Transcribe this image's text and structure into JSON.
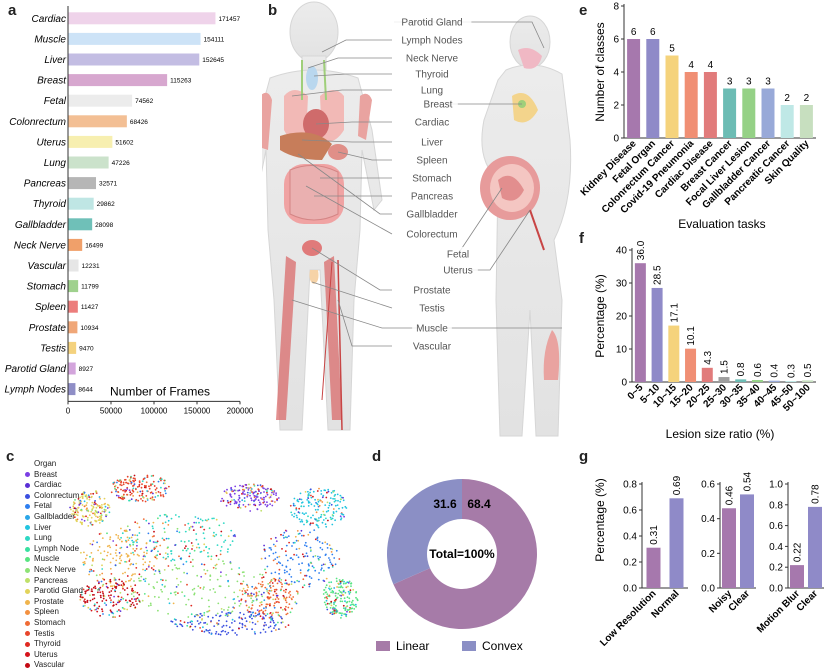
{
  "panels": {
    "a": "a",
    "b": "b",
    "c": "c",
    "d": "d",
    "e": "e",
    "f": "f",
    "g": "g"
  },
  "chart_data": [
    {
      "panel": "a",
      "type": "bar",
      "orientation": "horizontal",
      "xlabel": "Number of Frames",
      "xlim": [
        0,
        200000
      ],
      "xticks": [
        0,
        50000,
        100000,
        150000,
        200000
      ],
      "categories": [
        "Cardiac",
        "Muscle",
        "Liver",
        "Breast",
        "Fetal",
        "Colonrectum",
        "Uterus",
        "Lung",
        "Pancreas",
        "Thyroid",
        "Gallbladder",
        "Neck Nerve",
        "Vascular",
        "Stomach",
        "Spleen",
        "Prostate",
        "Testis",
        "Parotid Gland",
        "Lymph Nodes"
      ],
      "values": [
        171457,
        154111,
        152645,
        115263,
        74562,
        68426,
        51602,
        47226,
        32571,
        29862,
        28098,
        16499,
        12231,
        11799,
        11427,
        10934,
        9470,
        8927,
        8644
      ],
      "colors": [
        "#efd3ea",
        "#cde3f7",
        "#c3bde3",
        "#d7a7cf",
        "#ececec",
        "#f3bf94",
        "#f7efb0",
        "#cbe2cb",
        "#b6b6b6",
        "#bfe6e4",
        "#6fc0b8",
        "#f0a06a",
        "#e6e6e6",
        "#9fd18d",
        "#ec7d7c",
        "#f0a778",
        "#f4d27e",
        "#d3a5dc",
        "#8f8ec6"
      ]
    },
    {
      "panel": "e",
      "type": "bar",
      "ylabel": "Number of classes",
      "xlabel": "Evaluation tasks",
      "ylim": [
        0,
        8
      ],
      "yticks": [
        0,
        2,
        4,
        6,
        8
      ],
      "categories": [
        "Kidney Disease",
        "Fetal Organ",
        "Colonrectum Cancer",
        "Covid-19 Pneumonia",
        "Cardiac Disease",
        "Breast Cancer",
        "Focal Liver Lesion",
        "Gallbladder Cancer",
        "Pancreatic Cancer",
        "Skin Quality"
      ],
      "values": [
        6,
        6,
        5,
        4,
        4,
        3,
        3,
        3,
        2,
        2
      ],
      "labels": [
        "6",
        "6",
        "5",
        "4",
        "4",
        "3",
        "3",
        "3",
        "2",
        "2"
      ],
      "colors": [
        "#a678ad",
        "#8f8ac8",
        "#f5d37c",
        "#f08f74",
        "#e17b7b",
        "#6cbcb4",
        "#95d186",
        "#98a9d8",
        "#bfe8e6",
        "#c7dfbf"
      ]
    },
    {
      "panel": "f",
      "type": "bar",
      "ylabel": "Percentage (%)",
      "xlabel": "Lesion size ratio (%)",
      "ylim": [
        0,
        40
      ],
      "yticks": [
        0,
        10,
        20,
        30,
        40
      ],
      "categories": [
        "0~5",
        "5~10",
        "10~15",
        "15~20",
        "20~25",
        "25~30",
        "30~35",
        "35~40",
        "40~45",
        "45~50",
        "50~100"
      ],
      "values": [
        36.0,
        28.5,
        17.1,
        10.1,
        4.3,
        1.5,
        0.8,
        0.6,
        0.4,
        0.3,
        0.5
      ],
      "labels": [
        "36.0",
        "28.5",
        "17.1",
        "10.1",
        "4.3",
        "1.5",
        "0.8",
        "0.6",
        "0.4",
        "0.3",
        "0.5"
      ],
      "colors": [
        "#a678ad",
        "#8f8ac8",
        "#f5d37c",
        "#f08f74",
        "#e17b7b",
        "#9e9e9e",
        "#6cbcb4",
        "#95d186",
        "#98a9d8",
        "#bfe8e6",
        "#c7dfbf"
      ]
    },
    {
      "panel": "d",
      "type": "pie",
      "donut": true,
      "center_label": "Total=100%",
      "slices": [
        {
          "name": "Linear",
          "value": 68.4,
          "label": "68.4",
          "color": "#a67ba8"
        },
        {
          "name": "Convex",
          "value": 31.6,
          "label": "31.6",
          "color": "#8b8fc5"
        }
      ]
    },
    {
      "panel": "g",
      "type": "bar",
      "ylabel": "Percentage (%)",
      "groups": [
        {
          "ylim": [
            0,
            0.8
          ],
          "yticks": [
            "0.0",
            "0.2",
            "0.4",
            "0.6",
            "0.8"
          ],
          "categories": [
            "Low Resolution",
            "Normal"
          ],
          "values": [
            0.31,
            0.69
          ],
          "labels": [
            "0.31",
            "0.69"
          ]
        },
        {
          "ylim": [
            0,
            0.6
          ],
          "yticks": [
            "0.0",
            "0.2",
            "0.4",
            "0.6"
          ],
          "categories": [
            "Noisy",
            "Clear"
          ],
          "values": [
            0.46,
            0.54
          ],
          "labels": [
            "0.46",
            "0.54"
          ]
        },
        {
          "ylim": [
            0,
            1.0
          ],
          "yticks": [
            "0.0",
            "0.2",
            "0.4",
            "0.6",
            "0.8",
            "1.0"
          ],
          "categories": [
            "Motion Blur",
            "Clear"
          ],
          "values": [
            0.22,
            0.78
          ],
          "labels": [
            "0.22",
            "0.78"
          ]
        }
      ],
      "colors": [
        "#a678ad",
        "#8f8ac8"
      ]
    },
    {
      "panel": "c",
      "type": "scatter",
      "legend_title": "Organ",
      "series": [
        {
          "name": "Breast",
          "color": "#7b3fe4"
        },
        {
          "name": "Cardiac",
          "color": "#5a2fd6"
        },
        {
          "name": "Colonrectum",
          "color": "#3a4fe0"
        },
        {
          "name": "Fetal",
          "color": "#2e7ff0"
        },
        {
          "name": "Gallbladder",
          "color": "#2aa6e8"
        },
        {
          "name": "Liver",
          "color": "#22c4e0"
        },
        {
          "name": "Lung",
          "color": "#2ed8c4"
        },
        {
          "name": "Lymph Node",
          "color": "#39e0a0"
        },
        {
          "name": "Muscle",
          "color": "#58e482"
        },
        {
          "name": "Neck Nerve",
          "color": "#8ee276"
        },
        {
          "name": "Pancreas",
          "color": "#bfe06a"
        },
        {
          "name": "Parotid Gland",
          "color": "#e2d35a"
        },
        {
          "name": "Prostate",
          "color": "#f0b44c"
        },
        {
          "name": "Spleen",
          "color": "#f39140"
        },
        {
          "name": "Stomach",
          "color": "#f06c36"
        },
        {
          "name": "Testis",
          "color": "#e8462c"
        },
        {
          "name": "Thyroid",
          "color": "#e02a22"
        },
        {
          "name": "Uterus",
          "color": "#d6141c"
        },
        {
          "name": "Vascular",
          "color": "#c40a14"
        }
      ]
    }
  ],
  "anatomy": {
    "left_labels": [
      "Parotid Gland",
      "Lymph Nodes",
      "Neck Nerve",
      "Thyroid",
      "Lung",
      "Breast",
      "Cardiac",
      "Liver",
      "Spleen",
      "Stomach",
      "Pancreas",
      "Gallbladder",
      "Colorectum",
      "Fetal",
      "Uterus",
      "Prostate",
      "Testis",
      "Muscle",
      "Vascular"
    ]
  }
}
